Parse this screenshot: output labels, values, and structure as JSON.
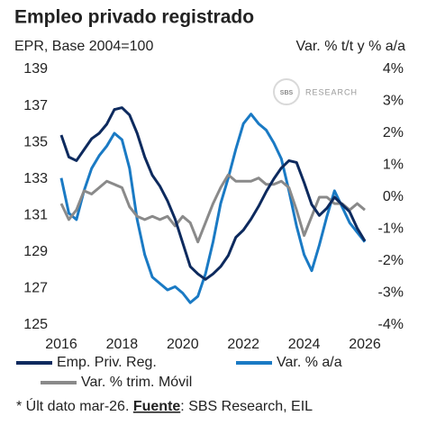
{
  "chart_data": {
    "type": "line",
    "title": "Empleo privado registrado",
    "subtitle_left": "EPR, Base 2004=100",
    "subtitle_right": "Var. % t/t y % a/a",
    "logo": {
      "mark": "SBS",
      "text": "RESEARCH"
    },
    "footnote": {
      "note": "* Últ dato mar-26.",
      "source_label": "Fuente",
      "source": ": SBS Research, EIL"
    },
    "x": [
      2016,
      2016.25,
      2016.5,
      2016.75,
      2017,
      2017.25,
      2017.5,
      2017.75,
      2018,
      2018.25,
      2018.5,
      2018.75,
      2019,
      2019.25,
      2019.5,
      2019.75,
      2020,
      2020.25,
      2020.5,
      2020.75,
      2021,
      2021.25,
      2021.5,
      2021.75,
      2022,
      2022.25,
      2022.5,
      2022.75,
      2023,
      2023.25,
      2023.5,
      2023.75,
      2024,
      2024.25,
      2024.5,
      2024.75,
      2025,
      2025.25,
      2025.5,
      2025.75,
      2026
    ],
    "xlim": [
      2016,
      2026
    ],
    "xticks": [
      2016,
      2018,
      2020,
      2022,
      2024,
      2026
    ],
    "ylim": [
      125,
      139
    ],
    "yticks": [
      125,
      127,
      129,
      131,
      133,
      135,
      137,
      139
    ],
    "y2lim": [
      -4,
      4
    ],
    "y2ticks": [
      {
        "value": -4,
        "label": "-4%"
      },
      {
        "value": -3,
        "label": "-3%"
      },
      {
        "value": -2,
        "label": "-2%"
      },
      {
        "value": -1,
        "label": "-1%"
      },
      {
        "value": 0,
        "label": "0%"
      },
      {
        "value": 1,
        "label": "1%"
      },
      {
        "value": 2,
        "label": "2%"
      },
      {
        "value": 3,
        "label": "3%"
      },
      {
        "value": 4,
        "label": "4%"
      }
    ],
    "series": [
      {
        "name": "Emp. Priv. Reg.",
        "color": "#0d2a5e",
        "axis": "y",
        "values": [
          135.4,
          134.2,
          134.0,
          134.6,
          135.2,
          135.5,
          136.0,
          136.8,
          136.9,
          136.5,
          135.5,
          134.2,
          133.2,
          132.6,
          131.8,
          130.8,
          129.5,
          128.2,
          127.8,
          127.5,
          127.8,
          128.2,
          128.8,
          129.8,
          130.2,
          130.8,
          131.5,
          132.3,
          133.0,
          133.6,
          134.0,
          133.9,
          132.8,
          131.6,
          131.0,
          131.4,
          132.0,
          131.6,
          131.2,
          130.3,
          129.6
        ]
      },
      {
        "name": "Var. % a/a",
        "color": "#1a7ac4",
        "axis": "y2",
        "values": [
          0.6,
          -0.5,
          -0.7,
          0.2,
          0.9,
          1.3,
          1.6,
          2.0,
          1.8,
          0.9,
          -0.7,
          -1.8,
          -2.5,
          -2.7,
          -2.9,
          -2.8,
          -3.0,
          -3.3,
          -3.1,
          -2.4,
          -1.4,
          -0.2,
          0.6,
          1.5,
          2.3,
          2.6,
          2.3,
          2.1,
          1.7,
          1.2,
          0.2,
          -0.9,
          -1.8,
          -2.3,
          -1.5,
          -0.6,
          0.2,
          -0.3,
          -0.8,
          -1.1,
          -1.4
        ]
      },
      {
        "name": "Var. % trim. Móvil",
        "color": "#8a8a8a",
        "axis": "y2",
        "values": [
          -0.2,
          -0.7,
          -0.4,
          0.2,
          0.1,
          0.3,
          0.5,
          0.4,
          0.3,
          -0.3,
          -0.6,
          -0.7,
          -0.6,
          -0.7,
          -0.6,
          -0.9,
          -0.6,
          -0.8,
          -1.4,
          -0.8,
          -0.2,
          0.3,
          0.7,
          0.5,
          0.5,
          0.5,
          0.6,
          0.4,
          0.4,
          0.5,
          0.3,
          -0.4,
          -1.2,
          -0.6,
          0.0,
          0.0,
          -0.2,
          -0.2,
          -0.4,
          -0.2,
          -0.4
        ]
      }
    ]
  }
}
